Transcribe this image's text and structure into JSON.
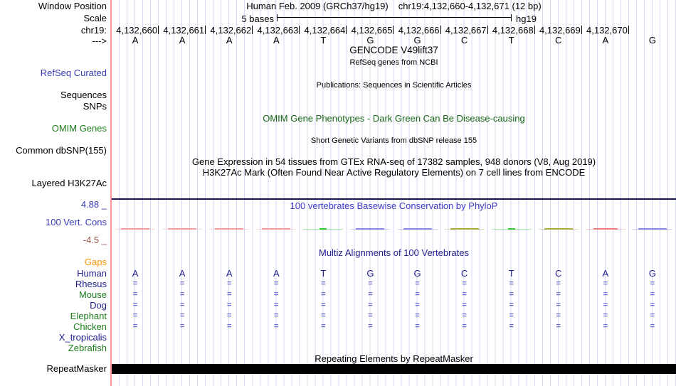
{
  "colors": {
    "grid": "#d7d7f0",
    "marker_line": "#ff9898",
    "blue_label": "#3a3ab8",
    "navy": "#21218e",
    "green_label": "#1c7c1c",
    "omim_green": "#156415",
    "cons_title": "#3c3cc4",
    "maroon": "#9c544c",
    "orange": "#fe9400",
    "align_glyph": "#6f6fd2",
    "top_line": "#16164e",
    "cons_salmon": "#f49c9c",
    "cons_red": "#ec8080",
    "cons_green": "#2cc82c",
    "cons_blue": "#8585e6",
    "cons_olive": "#a9a940"
  },
  "header": {
    "assembly_title": "Human Feb. 2009 (GRCh37/hg19)",
    "position_title": "chr19:4,132,660-4,132,671 (12 bp)",
    "window_position_label": "Window Position",
    "scale_label": "Scale",
    "scale_value": "5 bases",
    "scale_assembly": "hg19",
    "chrom_label": "chr19:",
    "strand_arrow": "--->"
  },
  "ruler": {
    "positions": [
      "4,132,660",
      "4,132,661",
      "4,132,662",
      "4,132,663",
      "4,132,664",
      "4,132,665",
      "4,132,666",
      "4,132,667",
      "4,132,668",
      "4,132,669",
      "4,132,670"
    ]
  },
  "sequence": [
    "A",
    "A",
    "A",
    "A",
    "T",
    "G",
    "G",
    "C",
    "T",
    "C",
    "A",
    "G"
  ],
  "left_labels": {
    "refseq_curated": "RefSeq Curated",
    "sequences": "Sequences",
    "snps": "SNPs",
    "omim_genes": "OMIM Genes",
    "common_dbsnp": "Common dbSNP(155)",
    "layered_h3k27ac": "Layered H3K27Ac",
    "cons_max": "4.88 _",
    "vert_cons": "100 Vert. Cons",
    "cons_min": "-4.5 _",
    "repeatmasker": "RepeatMasker"
  },
  "center_titles": {
    "gencode": "GENCODE V49lift37",
    "refseq_sub": "RefSeq genes from NCBI",
    "publications": "Publications: Sequences in Scientific Articles",
    "omim": "OMIM Gene Phenotypes - Dark Green Can Be Disease-causing",
    "dbsnp_sub": "Short Genetic Variants from dbSNP release 155",
    "gtex": "Gene Expression in 54 tissues from GTEx RNA-seq of 17382 samples, 948 donors (V8, Aug 2019)",
    "h3k27ac": "H3K27Ac Mark (Often Found Near Active Regulatory Elements) on 7 cell lines from ENCODE",
    "phylop": "100 vertebrates Basewise Conservation by PhyloP",
    "multiz": "Multiz Alignments of 100 Vertebrates",
    "repeat": "Repeating Elements by RepeatMasker"
  },
  "conservation": {
    "dashes": [
      {
        "color": "cons_salmon",
        "w": 40
      },
      {
        "color": "cons_salmon",
        "w": 40
      },
      {
        "color": "cons_salmon",
        "w": 40
      },
      {
        "color": "cons_salmon",
        "w": 40
      },
      {
        "color": "cons_green",
        "w": 10
      },
      {
        "color": "cons_blue",
        "w": 40
      },
      {
        "color": "cons_blue",
        "w": 40
      },
      {
        "color": "cons_olive",
        "w": 40
      },
      {
        "color": "cons_green",
        "w": 10
      },
      {
        "color": "cons_olive",
        "w": 40
      },
      {
        "color": "cons_red",
        "w": 34
      },
      {
        "color": "cons_blue",
        "w": 40
      }
    ]
  },
  "multiz": {
    "align_glyph": "=",
    "species": [
      {
        "name": "Gaps",
        "color": "orange",
        "row": "empty"
      },
      {
        "name": "Human",
        "color": "navy",
        "row": "bases"
      },
      {
        "name": "Rhesus",
        "color": "navy",
        "row": "align"
      },
      {
        "name": "Mouse",
        "color": "green_label",
        "row": "align"
      },
      {
        "name": "Dog",
        "color": "navy",
        "row": "align"
      },
      {
        "name": "Elephant",
        "color": "green_label",
        "row": "align"
      },
      {
        "name": "Chicken",
        "color": "green_label",
        "row": "align"
      },
      {
        "name": "X_tropicalis",
        "color": "navy",
        "row": "empty"
      },
      {
        "name": "Zebrafish",
        "color": "green_label",
        "row": "empty"
      }
    ]
  }
}
